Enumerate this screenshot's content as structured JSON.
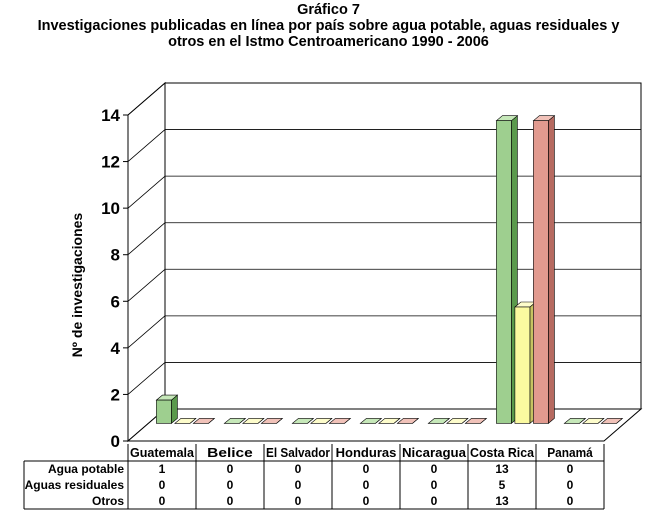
{
  "chart_data": {
    "type": "bar",
    "title": "Gráfico 7",
    "subtitle_lines": [
      "Investigaciones publicadas en línea por país sobre agua potable, aguas residuales y",
      "otros en el Istmo Centroamericano 1990 - 2006"
    ],
    "ylabel": "Nº de investigaciones",
    "xlabel": "",
    "ylim": [
      0,
      14
    ],
    "yticks": [
      "0",
      "2",
      "4",
      "6",
      "8",
      "10",
      "12",
      "14"
    ],
    "grid": true,
    "legend": "none",
    "categories": [
      "Guatemala",
      "Belice",
      "El Salvador",
      "Honduras",
      "Nicaragua",
      "Costa Rica",
      "Panamá"
    ],
    "series": [
      {
        "name": "Agua potable",
        "values": [
          1,
          0,
          0,
          0,
          0,
          13,
          0
        ],
        "labels": [
          "1",
          "0",
          "0",
          "0",
          "0",
          "13",
          "0"
        ]
      },
      {
        "name": "Aguas residuales",
        "values": [
          0,
          0,
          0,
          0,
          0,
          5,
          0
        ],
        "labels": [
          "0",
          "0",
          "0",
          "0",
          "0",
          "5",
          "0"
        ]
      },
      {
        "name": "Otros",
        "values": [
          0,
          0,
          0,
          0,
          0,
          13,
          0
        ],
        "labels": [
          "0",
          "0",
          "0",
          "0",
          "0",
          "13",
          "0"
        ]
      }
    ],
    "colors": {
      "series_fronts": [
        "#9ecf8f",
        "#fbfaa0",
        "#e29a8f"
      ],
      "series_sides": [
        "#5a9a4c",
        "#c6c462",
        "#b66a60"
      ],
      "series_tops": [
        "#c6e8b9",
        "#fdfccb",
        "#f1c2b9"
      ],
      "frame": "#000000",
      "background": "#ffffff"
    }
  }
}
